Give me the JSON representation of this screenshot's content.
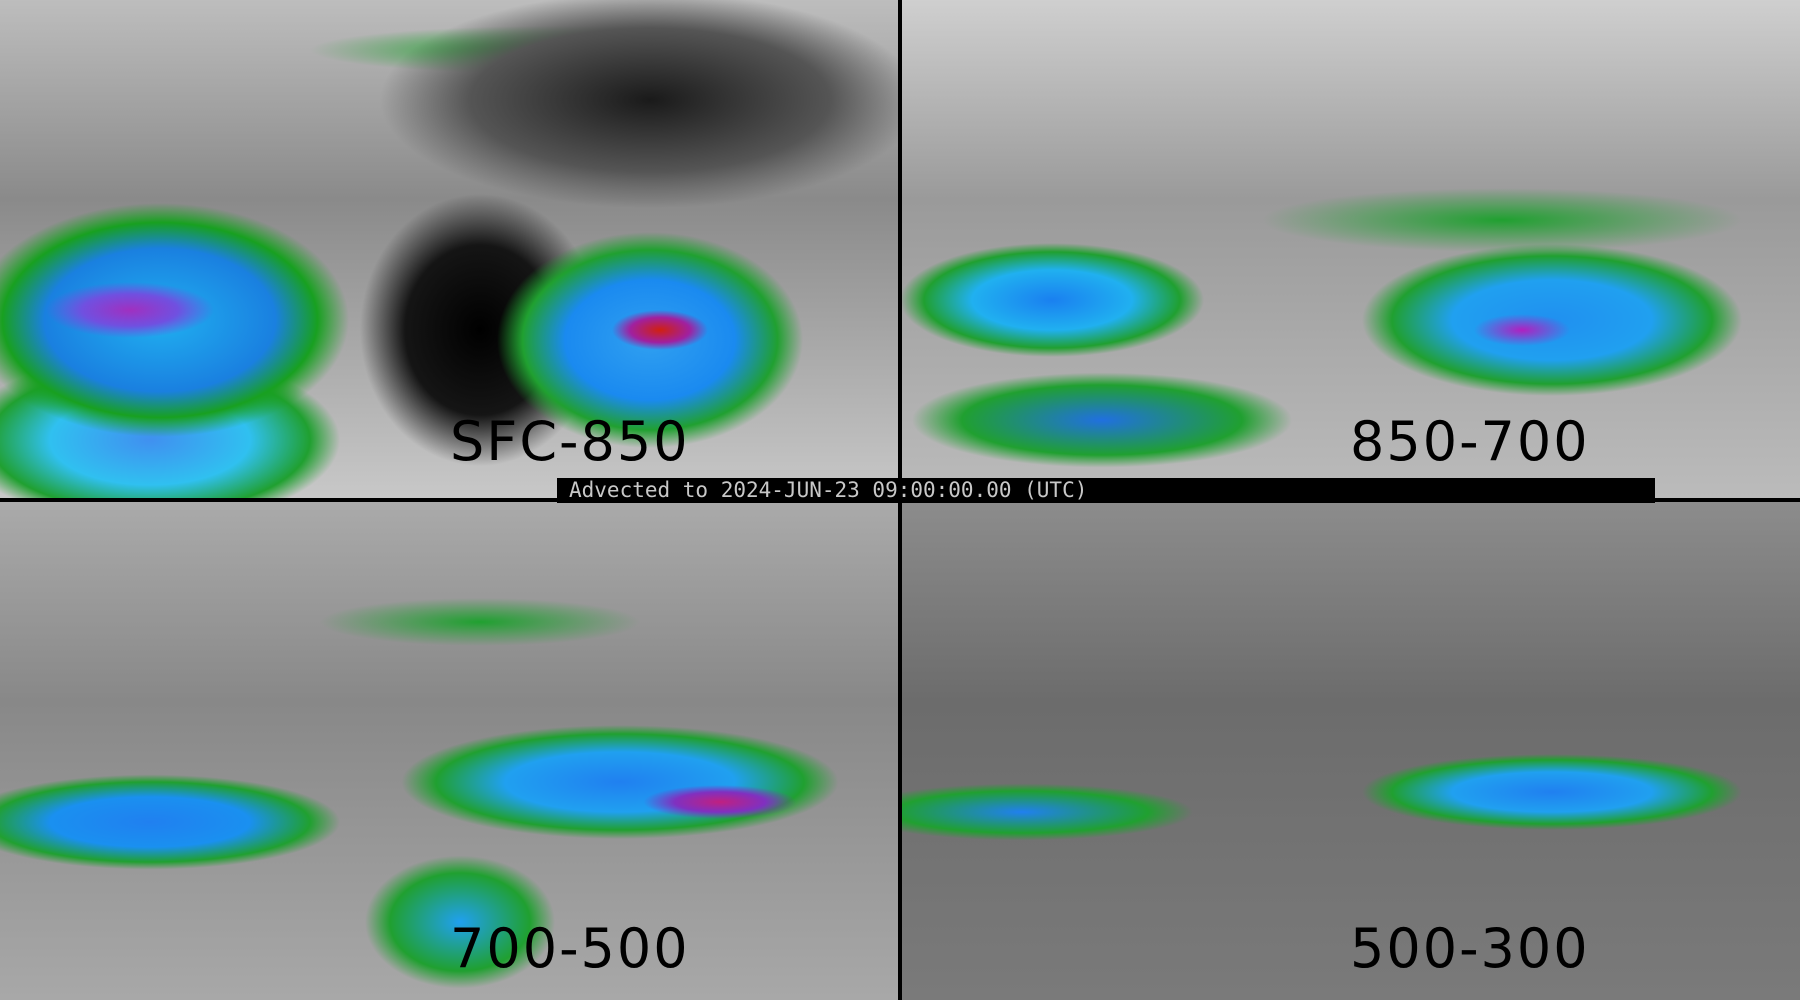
{
  "panels": [
    {
      "label": "SFC-850"
    },
    {
      "label": "850-700"
    },
    {
      "label": "700-500"
    },
    {
      "label": "500-300"
    }
  ],
  "banner": "Advected to 2024-JUN-23 09:00:00.00 (UTC)",
  "colors": {
    "low": "#808080",
    "green": "#20a030",
    "blue": "#1a8af0",
    "cyan": "#30c0f0",
    "purple": "#a030c0",
    "red": "#d02010"
  }
}
